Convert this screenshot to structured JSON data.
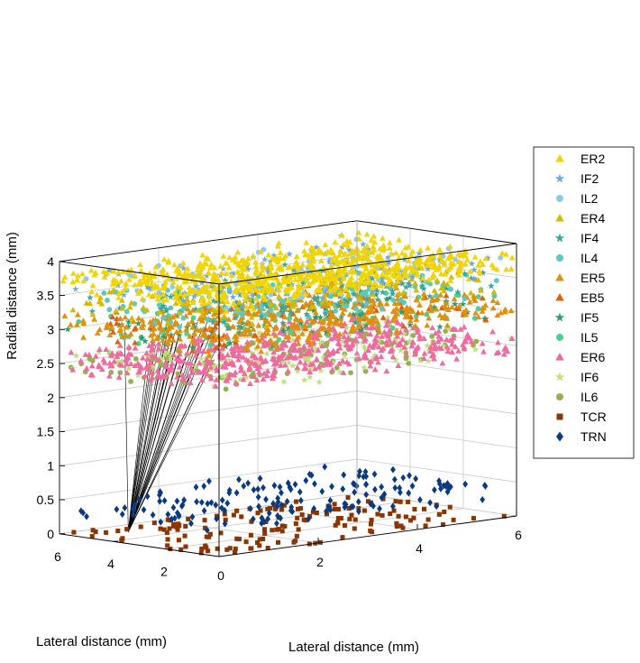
{
  "chart_data": {
    "type": "scatter",
    "projection": "3d",
    "title": "",
    "xlabel": "Lateral distance (mm)",
    "ylabel": "Lateral distance (mm)",
    "zlabel": "Radial distance (mm)",
    "xlim": [
      0,
      6
    ],
    "ylim": [
      0,
      6
    ],
    "zlim": [
      0,
      4
    ],
    "xticks": [
      "0",
      "2",
      "4",
      "6"
    ],
    "yticks": [
      "2",
      "4",
      "6"
    ],
    "zticks": [
      "0",
      "0.5",
      "1",
      "1.5",
      "2",
      "2.5",
      "3",
      "3.5",
      "4"
    ],
    "grid": true,
    "legend_position": "right",
    "series": [
      {
        "name": "ER2",
        "color": "#f2d500",
        "marker": "triangle",
        "count": 700,
        "z_range": [
          3.55,
          3.85
        ]
      },
      {
        "name": "IF2",
        "color": "#6fa8dc",
        "marker": "star",
        "count": 110,
        "z_range": [
          3.55,
          3.85
        ]
      },
      {
        "name": "IL2",
        "color": "#8fc8ee",
        "marker": "circle",
        "count": 80,
        "z_range": [
          3.55,
          3.85
        ]
      },
      {
        "name": "ER4",
        "color": "#d9b800",
        "marker": "triangle",
        "count": 120,
        "z_range": [
          3.22,
          3.55
        ]
      },
      {
        "name": "IF4",
        "color": "#3aa6a0",
        "marker": "star",
        "count": 110,
        "z_range": [
          3.22,
          3.55
        ]
      },
      {
        "name": "IL4",
        "color": "#5cc8c4",
        "marker": "circle",
        "count": 110,
        "z_range": [
          3.22,
          3.55
        ]
      },
      {
        "name": "ER5",
        "color": "#e0900a",
        "marker": "triangle",
        "count": 420,
        "z_range": [
          2.9,
          3.22
        ]
      },
      {
        "name": "EB5",
        "color": "#e06010",
        "marker": "triangle",
        "count": 70,
        "z_range": [
          2.9,
          3.22
        ]
      },
      {
        "name": "IF5",
        "color": "#2e9a70",
        "marker": "star",
        "count": 110,
        "z_range": [
          2.9,
          3.22
        ]
      },
      {
        "name": "IL5",
        "color": "#50d090",
        "marker": "circle",
        "count": 80,
        "z_range": [
          2.9,
          3.22
        ]
      },
      {
        "name": "ER6",
        "color": "#f06aa0",
        "marker": "triangle",
        "count": 520,
        "z_range": [
          2.35,
          2.7
        ]
      },
      {
        "name": "IF6",
        "color": "#bde07a",
        "marker": "star",
        "count": 170,
        "z_range": [
          2.35,
          2.7
        ]
      },
      {
        "name": "IL6",
        "color": "#96b050",
        "marker": "circle",
        "count": 130,
        "z_range": [
          2.35,
          2.7
        ]
      },
      {
        "name": "TCR",
        "color": "#8b3500",
        "marker": "square",
        "count": 160,
        "z_range": [
          0,
          0
        ]
      },
      {
        "name": "TRN",
        "color": "#0a3a80",
        "marker": "diamond",
        "count": 160,
        "z_range": [
          0.3,
          0.5
        ]
      }
    ],
    "projection_lines": {
      "count": 30,
      "from": [
        0.85,
        5.0,
        0.0
      ],
      "z_range": [
        2.35,
        3.25
      ],
      "color": "#000000"
    }
  }
}
